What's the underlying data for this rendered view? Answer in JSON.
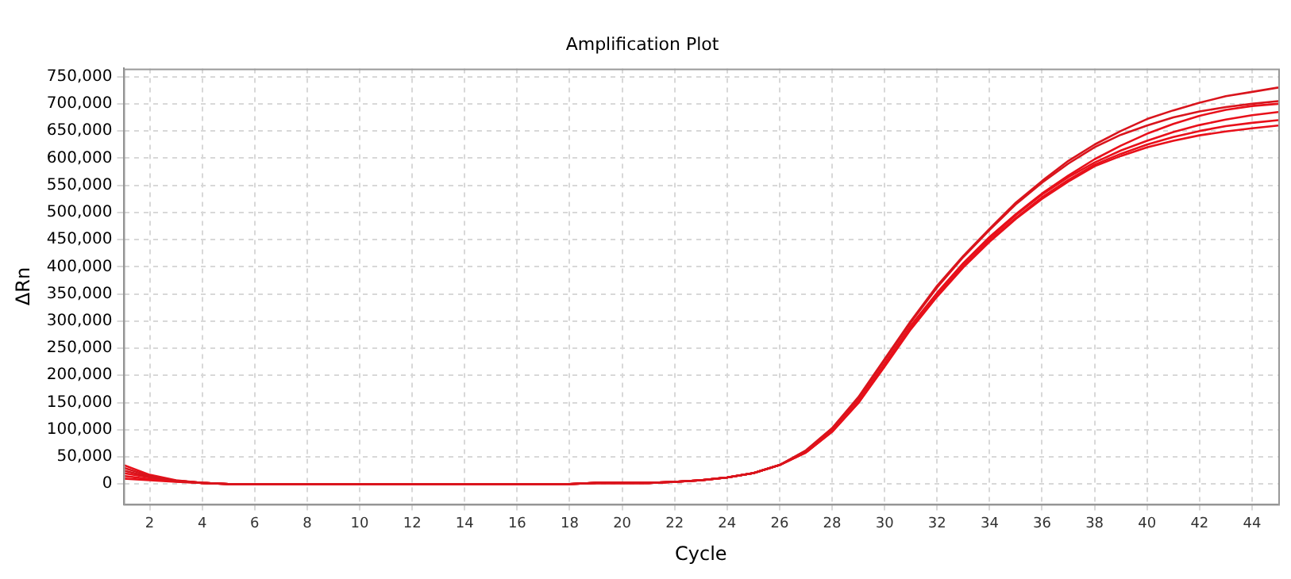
{
  "chart_data": {
    "type": "line",
    "title": "Amplification Plot",
    "xlabel": "Cycle",
    "ylabel": "ΔRn",
    "x": [
      1,
      2,
      3,
      4,
      5,
      6,
      7,
      8,
      9,
      10,
      11,
      12,
      13,
      14,
      15,
      16,
      17,
      18,
      19,
      20,
      21,
      22,
      23,
      24,
      25,
      26,
      27,
      28,
      29,
      30,
      31,
      32,
      33,
      34,
      35,
      36,
      37,
      38,
      39,
      40,
      41,
      42,
      43,
      44,
      45
    ],
    "xlim": [
      1,
      45
    ],
    "xticks": [
      2,
      4,
      6,
      8,
      10,
      12,
      14,
      16,
      18,
      20,
      22,
      24,
      26,
      28,
      30,
      32,
      34,
      36,
      38,
      40,
      42,
      44
    ],
    "ylim": [
      -37000,
      765000
    ],
    "yticks": [
      {
        "value": 0,
        "label": "0"
      },
      {
        "value": 50000,
        "label": "50,000"
      },
      {
        "value": 100000,
        "label": "100,000"
      },
      {
        "value": 150000,
        "label": "150,000"
      },
      {
        "value": 200000,
        "label": "200,000"
      },
      {
        "value": 250000,
        "label": "250,000"
      },
      {
        "value": 300000,
        "label": "300,000"
      },
      {
        "value": 350000,
        "label": "350,000"
      },
      {
        "value": 400000,
        "label": "400,000"
      },
      {
        "value": 450000,
        "label": "450,000"
      },
      {
        "value": 500000,
        "label": "500,000"
      },
      {
        "value": 550000,
        "label": "550,000"
      },
      {
        "value": 600000,
        "label": "600,000"
      },
      {
        "value": 650000,
        "label": "650,000"
      },
      {
        "value": 700000,
        "label": "700,000"
      },
      {
        "value": 750000,
        "label": "750,000"
      }
    ],
    "grid": true,
    "legend": false,
    "marker": "none",
    "line_style": "solid",
    "series": [
      {
        "color": "#d9141c",
        "values": [
          30000,
          15000,
          6000,
          2000,
          0,
          0,
          0,
          0,
          0,
          0,
          0,
          0,
          0,
          0,
          0,
          0,
          0,
          0,
          2000,
          2000,
          2000,
          4000,
          7000,
          12000,
          20000,
          35000,
          62000,
          103000,
          160000,
          230000,
          300000,
          365000,
          420000,
          470000,
          518000,
          558000,
          595000,
          625000,
          650000,
          672000,
          688000,
          702000,
          714000,
          722000,
          730000
        ]
      },
      {
        "color": "#d9141c",
        "values": [
          25000,
          13000,
          6000,
          2000,
          0,
          0,
          0,
          0,
          0,
          0,
          0,
          0,
          0,
          0,
          0,
          0,
          0,
          0,
          2000,
          2000,
          2000,
          4000,
          7000,
          12000,
          20000,
          35000,
          61000,
          102000,
          158000,
          228000,
          298000,
          362000,
          418000,
          468000,
          515000,
          555000,
          590000,
          620000,
          643000,
          660000,
          675000,
          686000,
          694000,
          700000,
          705000
        ]
      },
      {
        "color": "#e8101a",
        "values": [
          20000,
          12000,
          6000,
          2000,
          0,
          0,
          0,
          0,
          0,
          0,
          0,
          0,
          0,
          0,
          0,
          0,
          0,
          0,
          2000,
          2000,
          2000,
          4000,
          7000,
          12000,
          20000,
          35000,
          59000,
          98000,
          152000,
          220000,
          290000,
          350000,
          405000,
          452000,
          495000,
          533000,
          565000,
          592000,
          614000,
          632000,
          648000,
          661000,
          671000,
          679000,
          685000
        ]
      },
      {
        "color": "#e8101a",
        "values": [
          15000,
          9000,
          5000,
          2000,
          0,
          0,
          0,
          0,
          0,
          0,
          0,
          0,
          0,
          0,
          0,
          0,
          0,
          0,
          2000,
          2000,
          2000,
          4000,
          7000,
          12000,
          20000,
          35000,
          58000,
          97000,
          150000,
          218000,
          287000,
          347000,
          401000,
          448000,
          490000,
          528000,
          560000,
          588000,
          608000,
          625000,
          639000,
          650000,
          659000,
          665000,
          670000
        ]
      },
      {
        "color": "#e8101a",
        "values": [
          10000,
          7000,
          4000,
          2000,
          0,
          0,
          0,
          0,
          0,
          0,
          0,
          0,
          0,
          0,
          0,
          0,
          0,
          0,
          2000,
          2000,
          2000,
          4000,
          7000,
          12000,
          20000,
          35000,
          58000,
          96000,
          149000,
          216000,
          285000,
          345000,
          399000,
          446000,
          488000,
          525000,
          557000,
          585000,
          604000,
          620000,
          632000,
          642000,
          649000,
          655000,
          660000
        ]
      },
      {
        "color": "#e8101a",
        "values": [
          35000,
          17000,
          7000,
          2000,
          0,
          0,
          0,
          0,
          0,
          0,
          0,
          0,
          0,
          0,
          0,
          0,
          0,
          0,
          2000,
          2000,
          2000,
          4000,
          7000,
          12000,
          20000,
          35000,
          60000,
          99000,
          153000,
          222000,
          292000,
          352000,
          407000,
          455000,
          497000,
          535000,
          568000,
          598000,
          623000,
          645000,
          663000,
          678000,
          689000,
          696000,
          700000
        ]
      }
    ]
  }
}
